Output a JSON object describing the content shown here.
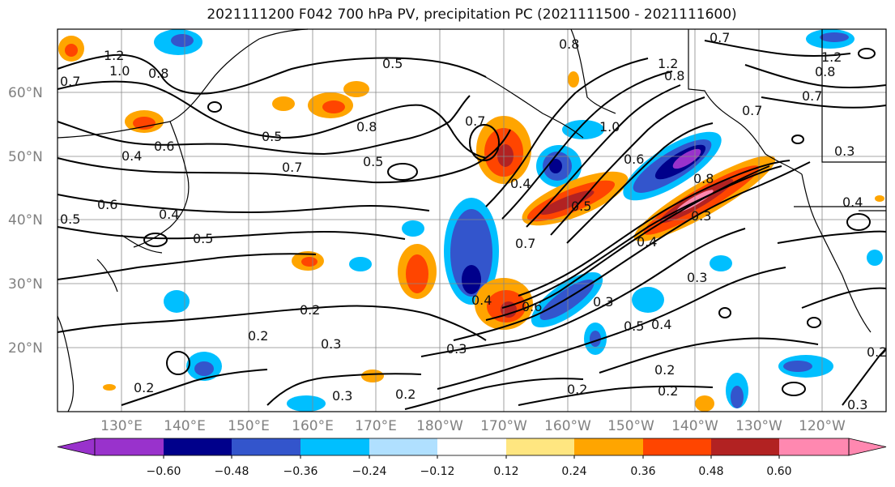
{
  "title": "2021111200 F042 700 hPa PV, precipitation PC (2021111500 - 2021111600)",
  "latitude_labels": [
    "60°N",
    "50°N",
    "40°N",
    "30°N",
    "20°N"
  ],
  "longitude_labels": [
    "130°E",
    "140°E",
    "150°E",
    "160°E",
    "170°E",
    "180°W",
    "170°W",
    "160°W",
    "150°W",
    "140°W",
    "130°W",
    "120°W"
  ],
  "colorbar": {
    "ticks": [
      "−0.60",
      "−0.48",
      "−0.36",
      "−0.24",
      "−0.12",
      "0.12",
      "0.24",
      "0.36",
      "0.48",
      "0.60"
    ],
    "colors": [
      "#9932cc",
      "#00008b",
      "#3355cc",
      "#00bfff",
      "#b0e0ff",
      "#ffffff",
      "#ffe680",
      "#ffa500",
      "#ff4500",
      "#b22222",
      "#ff88b0"
    ]
  },
  "contour_labels": [
    "1.2",
    "1.0",
    "0.8",
    "0.7",
    "0.5",
    "0.6",
    "0.4",
    "0.5",
    "0.7",
    "0.5",
    "0.4",
    "0.5",
    "0.6",
    "0.5",
    "0.8",
    "0.7",
    "0.8",
    "1.2",
    "0.8",
    "1.0",
    "0.7",
    "0.3",
    "0.4",
    "0.8",
    "0.6",
    "0.5",
    "0.4",
    "0.7",
    "0.3",
    "0.4",
    "0.6",
    "0.3",
    "0.2",
    "0.3",
    "0.2",
    "0.3",
    "0.2",
    "0.3",
    "0.2",
    "0.5",
    "0.4",
    "0.2",
    "0.3",
    "0.2",
    "0.4",
    "0.2",
    "0.3",
    "0.7",
    "0.8",
    "1.2",
    "0.7",
    "0.2"
  ]
}
